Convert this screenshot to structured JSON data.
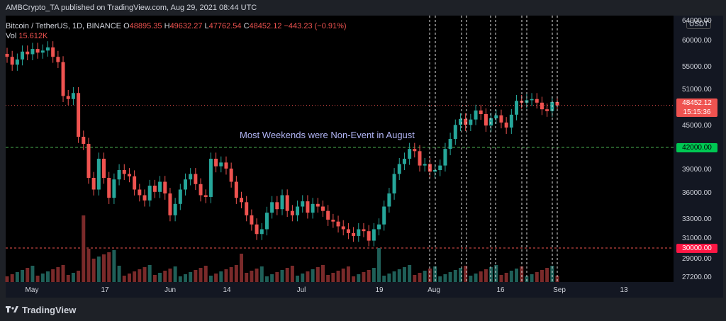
{
  "header": {
    "publisher_line": "AMBCrypto_TA published on TradingView.com, Aug 29, 2021 08:44 UTC"
  },
  "legend": {
    "symbol": "Bitcoin / TetherUS, 1D, BINANCE",
    "o_label": "O",
    "o": "48895.35",
    "h_label": "H",
    "h": "49632.27",
    "l_label": "L",
    "l": "47762.54",
    "c_label": "C",
    "c": "48452.12",
    "change": "−443.23 (−0.91%)",
    "vol_label": "Vol",
    "vol": "15.612K"
  },
  "annotation": "Most Weekends were Non-Event in August",
  "currency_badge": "USDT",
  "footer": {
    "brand": "TradingView"
  },
  "colors": {
    "up": "#26a69a",
    "down": "#ef5350",
    "vol_up": "#1f5f58",
    "vol_down": "#7a2a2a",
    "hline_green": "#4caf50",
    "hline_red": "#ef5350",
    "tag_green": "#00c853",
    "tag_red": "#ff1744"
  },
  "chart_data": {
    "type": "candlestick",
    "x_tick_labels": [
      "May",
      "17",
      "Jun",
      "14",
      "Jul",
      "19",
      "Aug",
      "16",
      "Sep",
      "13"
    ],
    "y_tick_labels": [
      "27200.00",
      "29000.00",
      "30000.00",
      "31000.00",
      "33000.00",
      "36000.00",
      "39000.00",
      "42000.00",
      "45000.00",
      "48452.12",
      "51000.00",
      "55000.00",
      "60000.00",
      "64000.00"
    ],
    "horizontal_levels": [
      {
        "value": 42000,
        "label": "42000.00",
        "color": "green"
      },
      {
        "value": 30000,
        "label": "30000.00",
        "color": "red"
      }
    ],
    "last_price": {
      "value": 48452.12,
      "label": "48452.12",
      "countdown": "15:15:36"
    },
    "annotation": "Most Weekends were Non-Event in August",
    "weekend_markers": [
      "Jul 31",
      "Aug 1",
      "Aug 7",
      "Aug 8",
      "Aug 14",
      "Aug 15",
      "Aug 21",
      "Aug 22",
      "Aug 28",
      "Aug 29"
    ],
    "candles_close_approx": [
      57000,
      55500,
      56500,
      58000,
      57500,
      58500,
      57800,
      58200,
      58800,
      57000,
      56000,
      50000,
      49500,
      50500,
      43500,
      42500,
      38000,
      36500,
      40500,
      38000,
      35500,
      37800,
      39000,
      38500,
      38200,
      36500,
      35800,
      35200,
      37000,
      36200,
      37500,
      36000,
      33500,
      34800,
      36500,
      37800,
      38500,
      37200,
      35800,
      35600,
      40500,
      39500,
      40000,
      39200,
      37500,
      35500,
      35000,
      33500,
      32500,
      31500,
      32000,
      33800,
      35000,
      34200,
      35800,
      34000,
      33500,
      34500,
      35100,
      33800,
      34800,
      34500,
      34000,
      33000,
      32800,
      32300,
      32000,
      31600,
      31300,
      32000,
      31800,
      30800,
      32000,
      32500,
      34500,
      36000,
      38500,
      39800,
      40500,
      41800,
      41500,
      39600,
      39800,
      38800,
      39000,
      39600,
      41800,
      43200,
      45200,
      46200,
      45200,
      46100,
      47600,
      47000,
      45100,
      46300,
      46800,
      45600,
      44800,
      46900,
      49200,
      48900,
      49300,
      49500,
      48900,
      47800,
      47500,
      49000,
      48452
    ]
  }
}
